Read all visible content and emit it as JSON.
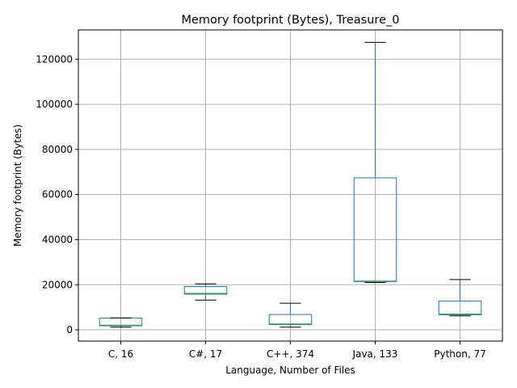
{
  "chart_data": {
    "type": "box",
    "title": "Memory footprint (Bytes), Treasure_0",
    "xlabel": "Language, Number of Files",
    "ylabel": "Memory footprint (Bytes)",
    "ylim": [
      -5000,
      133000
    ],
    "yticks": [
      0,
      20000,
      40000,
      60000,
      80000,
      100000,
      120000
    ],
    "grid": true,
    "legend": "none",
    "colors": {
      "box": "#1f77b4",
      "median": "#2ca02c",
      "whisker_cap": "#000000",
      "grid": "#b0b0b0"
    },
    "categories": [
      "C, 16",
      "C#, 17",
      "C++, 374",
      "Java, 133",
      "Python, 77"
    ],
    "boxes": [
      {
        "label": "C, 16",
        "whislo": 1200,
        "q1": 1800,
        "med": 2100,
        "q3": 5200,
        "whishi": 5300
      },
      {
        "label": "C#, 17",
        "whislo": 13200,
        "q1": 15800,
        "med": 16200,
        "q3": 19200,
        "whishi": 20400
      },
      {
        "label": "C++, 374",
        "whislo": 1200,
        "q1": 2300,
        "med": 2600,
        "q3": 6800,
        "whishi": 11800
      },
      {
        "label": "Java, 133",
        "whislo": 21000,
        "q1": 21400,
        "med": 21600,
        "q3": 67400,
        "whishi": 127500
      },
      {
        "label": "Python, 77",
        "whislo": 6200,
        "q1": 6700,
        "med": 7000,
        "q3": 12800,
        "whishi": 22300
      }
    ]
  }
}
